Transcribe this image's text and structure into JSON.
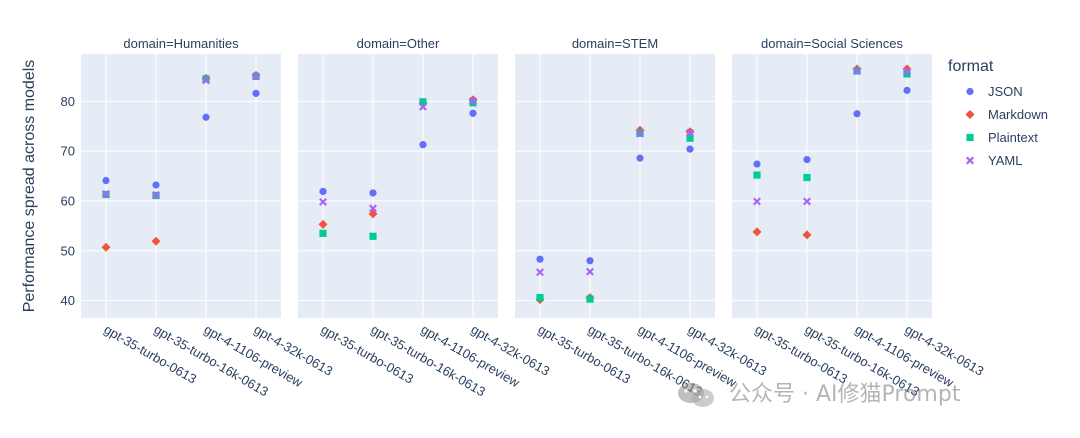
{
  "chart_data": {
    "type": "scatter",
    "ylabel": "Performance spread across models",
    "ylim": [
      36.5,
      89.5
    ],
    "yticks": [
      40,
      50,
      60,
      70,
      80
    ],
    "categories": [
      "gpt-35-turbo-0613",
      "gpt-35-turbo-16k-0613",
      "gpt-4-1106-preview",
      "gpt-4-32k-0613"
    ],
    "facets": [
      {
        "title": "domain=Humanities",
        "domain": "Humanities"
      },
      {
        "title": "domain=Other",
        "domain": "Other"
      },
      {
        "title": "domain=STEM",
        "domain": "STEM"
      },
      {
        "title": "domain=Social Sciences",
        "domain": "Social Sciences"
      }
    ],
    "legend": {
      "title": "format",
      "position": "right"
    },
    "grid": true,
    "series": [
      {
        "name": "JSON",
        "color": "#636efa",
        "symbol": "circle",
        "values": {
          "Humanities": [
            64.1,
            63.2,
            76.8,
            81.6
          ],
          "Other": [
            61.9,
            61.6,
            71.3,
            77.6
          ],
          "STEM": [
            48.3,
            48.0,
            68.6,
            70.4
          ],
          "Social Sciences": [
            67.4,
            68.3,
            77.5,
            82.2
          ]
        }
      },
      {
        "name": "Markdown",
        "color": "#ef553b",
        "symbol": "diamond",
        "values": {
          "Humanities": [
            50.7,
            51.9,
            84.6,
            85.2
          ],
          "Other": [
            55.3,
            57.4,
            79.6,
            80.3
          ],
          "STEM": [
            40.2,
            40.6,
            74.2,
            73.9
          ],
          "Social Sciences": [
            53.8,
            53.2,
            86.5,
            86.5
          ]
        }
      },
      {
        "name": "Plaintext",
        "color": "#00cc96",
        "symbol": "square",
        "values": {
          "Humanities": [
            61.3,
            61.1,
            84.5,
            85.0
          ],
          "Other": [
            53.5,
            52.9,
            79.9,
            79.7
          ],
          "STEM": [
            40.6,
            40.3,
            73.6,
            72.6
          ],
          "Social Sciences": [
            65.2,
            64.7,
            86.1,
            85.5
          ]
        }
      },
      {
        "name": "YAML",
        "color": "#ab63fa",
        "symbol": "x",
        "values": {
          "Humanities": [
            61.4,
            61.2,
            84.2,
            85.0
          ],
          "Other": [
            59.8,
            58.5,
            78.9,
            80.1
          ],
          "STEM": [
            45.7,
            45.8,
            73.5,
            73.7
          ],
          "Social Sciences": [
            59.9,
            59.9,
            86.1,
            86.0
          ]
        }
      }
    ]
  },
  "watermark": {
    "text": "公众号 · AI修猫Prompt",
    "icon": "wechat-logo"
  }
}
